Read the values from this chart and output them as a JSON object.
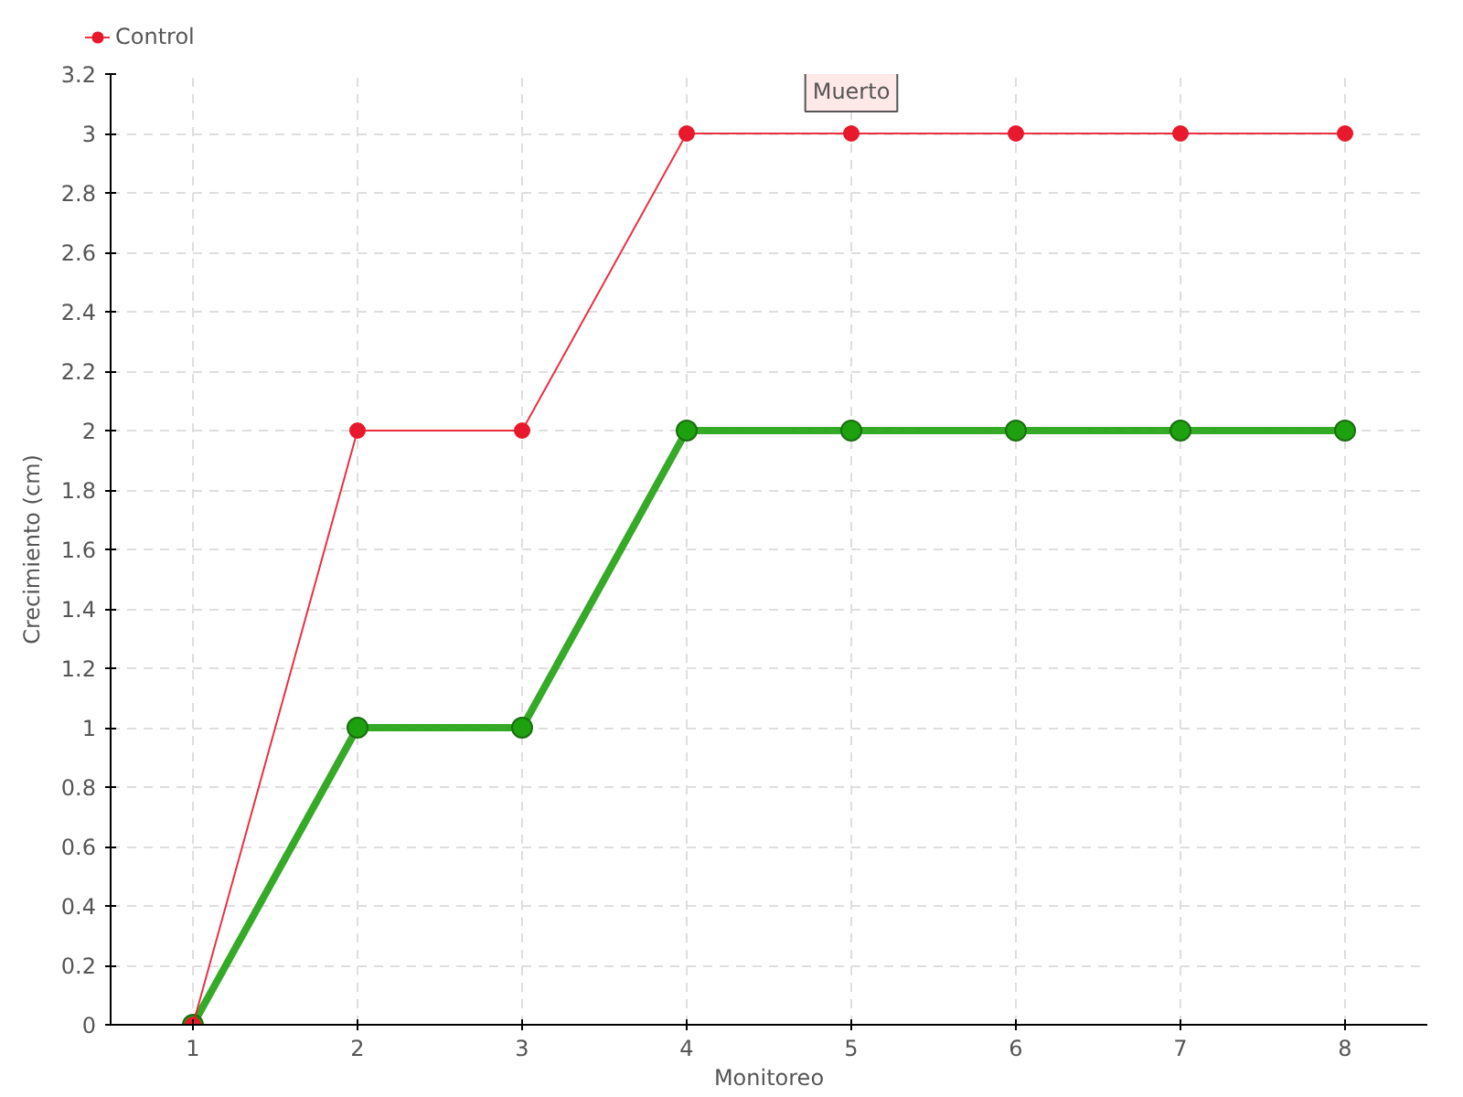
{
  "chart_data": {
    "type": "line",
    "xlabel": "Monitoreo",
    "ylabel": "Crecimiento (cm)",
    "x": [
      1,
      2,
      3,
      4,
      5,
      6,
      7,
      8
    ],
    "series": [
      {
        "color": "#1ea10f",
        "values": [
          0,
          1,
          1,
          2,
          2,
          2,
          2,
          2
        ]
      },
      {
        "name": "Control",
        "color": "#e8192c",
        "values": [
          0,
          2,
          2,
          3,
          3,
          3,
          3,
          3
        ]
      }
    ],
    "xlim": [
      0.5,
      8.5
    ],
    "xticks": [
      1,
      2,
      3,
      4,
      5,
      6,
      7,
      8
    ],
    "ylim": [
      0,
      3.2
    ],
    "yticks": [
      0,
      0.2,
      0.4,
      0.6,
      0.8,
      1,
      1.2,
      1.4,
      1.6,
      1.8,
      2,
      2.2,
      2.4,
      2.6,
      2.8,
      3,
      3.2
    ],
    "annotations": [
      {
        "text": "Muerto",
        "x": 5,
        "y": 3
      }
    ],
    "grid": true,
    "legend": "top left",
    "marker": "circle",
    "line_style": "solid"
  }
}
